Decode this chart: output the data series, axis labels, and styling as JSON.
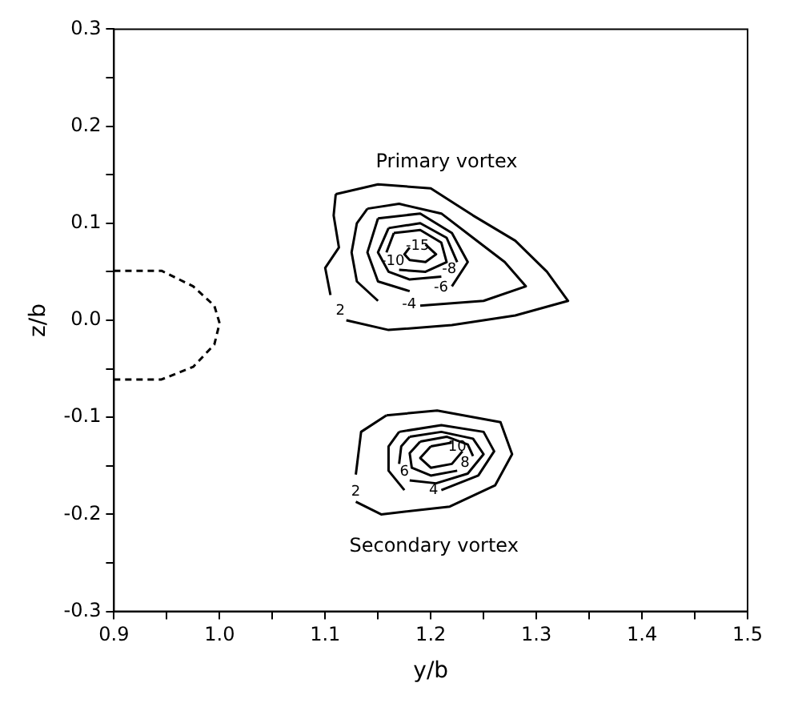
{
  "chart_data": {
    "type": "line",
    "xlabel": "y/b",
    "ylabel": "z/b",
    "xlim": [
      0.9,
      1.5
    ],
    "ylim": [
      -0.3,
      0.3
    ],
    "xticks": [
      0.9,
      {
        "value": 0.95,
        "label": null
      },
      {
        "value": 1.0,
        "label": "1.0"
      },
      {
        "value": 1.05,
        "label": null
      },
      1.1,
      {
        "value": 1.15,
        "label": null
      },
      1.2,
      {
        "value": 1.25,
        "label": null
      },
      1.3,
      {
        "value": 1.35,
        "label": null
      },
      1.4,
      {
        "value": 1.45,
        "label": null
      },
      1.5
    ],
    "yticks": [
      -0.3,
      {
        "value": -0.25,
        "label": null
      },
      -0.2,
      {
        "value": -0.15,
        "label": null
      },
      -0.1,
      {
        "value": -0.05,
        "label": null
      },
      {
        "value": 0.0,
        "label": "0.0"
      },
      {
        "value": 0.05,
        "label": null
      },
      0.1,
      {
        "value": 0.15,
        "label": null
      },
      0.2,
      {
        "value": 0.25,
        "label": null
      },
      0.3
    ],
    "grid": false,
    "marker": "none",
    "annotations": [
      "Primary vortex",
      "Secondary vortex"
    ],
    "series": [
      {
        "name": "2",
        "color": "#000000",
        "x": [
          1.11,
          1.15,
          1.2,
          1.24,
          1.28,
          1.31,
          1.33,
          1.28,
          1.22,
          1.16,
          1.12,
          1.105,
          1.1,
          1.113,
          1.108,
          1.11
        ],
        "values": [
          0.13,
          0.14,
          0.136,
          0.108,
          0.082,
          0.05,
          0.02,
          0.005,
          -0.005,
          -0.01,
          0.0,
          0.026,
          0.054,
          0.075,
          0.108,
          0.13
        ]
      },
      {
        "name": "-4",
        "color": "#000000",
        "x": [
          1.14,
          1.17,
          1.21,
          1.24,
          1.27,
          1.29,
          1.25,
          1.19,
          1.15,
          1.13,
          1.125,
          1.13,
          1.14
        ],
        "values": [
          0.115,
          0.12,
          0.11,
          0.085,
          0.06,
          0.035,
          0.02,
          0.015,
          0.02,
          0.04,
          0.07,
          0.1,
          0.115
        ]
      },
      {
        "name": "-6",
        "color": "#000000",
        "x": [
          1.15,
          1.19,
          1.22,
          1.235,
          1.22,
          1.18,
          1.15,
          1.14,
          1.15
        ],
        "values": [
          0.105,
          0.11,
          0.09,
          0.06,
          0.035,
          0.03,
          0.04,
          0.07,
          0.105
        ]
      },
      {
        "name": "-8",
        "color": "#000000",
        "x": [
          1.16,
          1.19,
          1.215,
          1.225,
          1.21,
          1.18,
          1.16,
          1.15,
          1.16
        ],
        "values": [
          0.095,
          0.1,
          0.085,
          0.06,
          0.045,
          0.042,
          0.05,
          0.07,
          0.095
        ]
      },
      {
        "name": "-10",
        "color": "#000000",
        "x": [
          1.165,
          1.19,
          1.21,
          1.215,
          1.195,
          1.17,
          1.158,
          1.165
        ],
        "values": [
          0.09,
          0.093,
          0.08,
          0.06,
          0.05,
          0.052,
          0.07,
          0.09
        ]
      },
      {
        "name": "-15",
        "color": "#000000",
        "x": [
          1.18,
          1.195,
          1.205,
          1.195,
          1.18,
          1.175,
          1.18
        ],
        "values": [
          0.075,
          0.078,
          0.068,
          0.06,
          0.062,
          0.068,
          0.075
        ]
      },
      {
        "name": "2",
        "color": "#000000",
        "x": [
          1.158,
          1.206,
          1.266,
          1.277,
          1.261,
          1.218,
          1.153,
          1.129,
          1.129,
          1.134,
          1.158
        ],
        "values": [
          -0.098,
          -0.093,
          -0.105,
          -0.138,
          -0.17,
          -0.192,
          -0.2,
          -0.187,
          -0.159,
          -0.115,
          -0.098
        ]
      },
      {
        "name": "4",
        "color": "#000000",
        "x": [
          1.17,
          1.21,
          1.25,
          1.26,
          1.245,
          1.21,
          1.175,
          1.16,
          1.16,
          1.17
        ],
        "values": [
          -0.115,
          -0.108,
          -0.115,
          -0.135,
          -0.16,
          -0.175,
          -0.175,
          -0.155,
          -0.13,
          -0.115
        ]
      },
      {
        "name": "6",
        "color": "#000000",
        "x": [
          1.18,
          1.21,
          1.24,
          1.25,
          1.235,
          1.205,
          1.18,
          1.17,
          1.172,
          1.18
        ],
        "values": [
          -0.12,
          -0.115,
          -0.122,
          -0.138,
          -0.158,
          -0.168,
          -0.165,
          -0.148,
          -0.13,
          -0.12
        ]
      },
      {
        "name": "8",
        "color": "#000000",
        "x": [
          1.19,
          1.215,
          1.235,
          1.24,
          1.225,
          1.2,
          1.182,
          1.18,
          1.19
        ],
        "values": [
          -0.125,
          -0.12,
          -0.128,
          -0.14,
          -0.155,
          -0.16,
          -0.152,
          -0.137,
          -0.125
        ]
      },
      {
        "name": "10",
        "color": "#000000",
        "x": [
          1.2,
          1.22,
          1.23,
          1.22,
          1.2,
          1.19,
          1.2
        ],
        "values": [
          -0.13,
          -0.126,
          -0.135,
          -0.148,
          -0.152,
          -0.142,
          -0.13
        ]
      },
      {
        "color": "#000000",
        "line_style": "dashed",
        "x": [
          0.9,
          0.945,
          0.975,
          0.995,
          1.0,
          0.995,
          0.975,
          0.945,
          0.9
        ],
        "values": [
          0.051,
          0.051,
          0.035,
          0.015,
          -0.003,
          -0.025,
          -0.048,
          -0.061,
          -0.061
        ]
      }
    ]
  }
}
